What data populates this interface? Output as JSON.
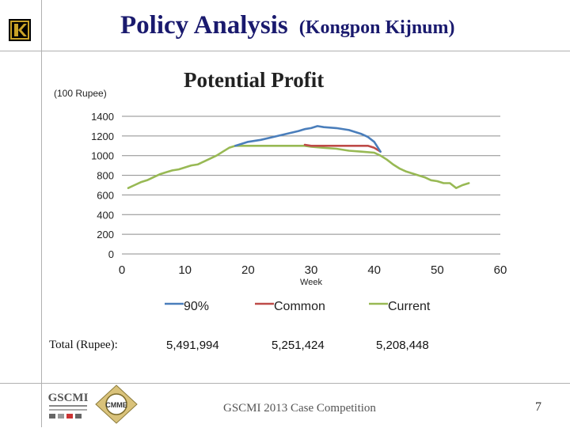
{
  "header": {
    "title": "Policy Analysis",
    "subtitle": "(Kongpon Kijnum)"
  },
  "logo": {
    "letter": "K"
  },
  "chart_data": {
    "type": "line",
    "title": "Potential Profit",
    "unit_label": "(100 Rupee)",
    "xlabel": "Week",
    "ylabel": "",
    "xlim": [
      0,
      60
    ],
    "ylim": [
      0,
      1400
    ],
    "xticks": [
      "0",
      "10",
      "20",
      "30",
      "40",
      "50",
      "60"
    ],
    "yticks": [
      "0",
      "200",
      "400",
      "600",
      "800",
      "1000",
      "1200",
      "1400"
    ],
    "grid": true,
    "legend_position": "bottom",
    "series": [
      {
        "name": "90%",
        "color": "#4a7ebb",
        "x": [
          18,
          19,
          20,
          22,
          24,
          26,
          28,
          29,
          30,
          31,
          32,
          34,
          36,
          38,
          39,
          40,
          41
        ],
        "y": [
          1100,
          1120,
          1140,
          1160,
          1190,
          1220,
          1250,
          1270,
          1280,
          1300,
          1290,
          1280,
          1260,
          1220,
          1190,
          1140,
          1040
        ]
      },
      {
        "name": "Common",
        "color": "#be4b48",
        "x": [
          29,
          30,
          32,
          34,
          36,
          37,
          38,
          39,
          40,
          41
        ],
        "y": [
          1110,
          1100,
          1100,
          1100,
          1100,
          1100,
          1100,
          1100,
          1080,
          1040
        ]
      },
      {
        "name": "Current",
        "color": "#98b954",
        "x": [
          1,
          2,
          3,
          4,
          5,
          6,
          7,
          8,
          9,
          10,
          11,
          12,
          13,
          14,
          15,
          16,
          17,
          18,
          19,
          20,
          22,
          24,
          26,
          28,
          29,
          30,
          32,
          34,
          36,
          38,
          40,
          41,
          42,
          43,
          44,
          45,
          46,
          47,
          48,
          49,
          50,
          51,
          52,
          53,
          54,
          55
        ],
        "y": [
          670,
          700,
          730,
          750,
          780,
          810,
          830,
          850,
          860,
          880,
          900,
          910,
          940,
          970,
          1000,
          1040,
          1080,
          1100,
          1100,
          1100,
          1100,
          1100,
          1100,
          1100,
          1100,
          1090,
          1080,
          1070,
          1050,
          1040,
          1030,
          1000,
          960,
          910,
          870,
          840,
          820,
          800,
          780,
          750,
          740,
          720,
          720,
          670,
          700,
          720
        ]
      }
    ]
  },
  "totals": {
    "label": "Total (Rupee):",
    "values": [
      "5,491,994",
      "5,251,424",
      "5,208,448"
    ]
  },
  "footer": {
    "text": "GSCMI 2013 Case Competition",
    "page": "7",
    "logo1_text": "GSCMI",
    "logo2_text": "CMME"
  }
}
